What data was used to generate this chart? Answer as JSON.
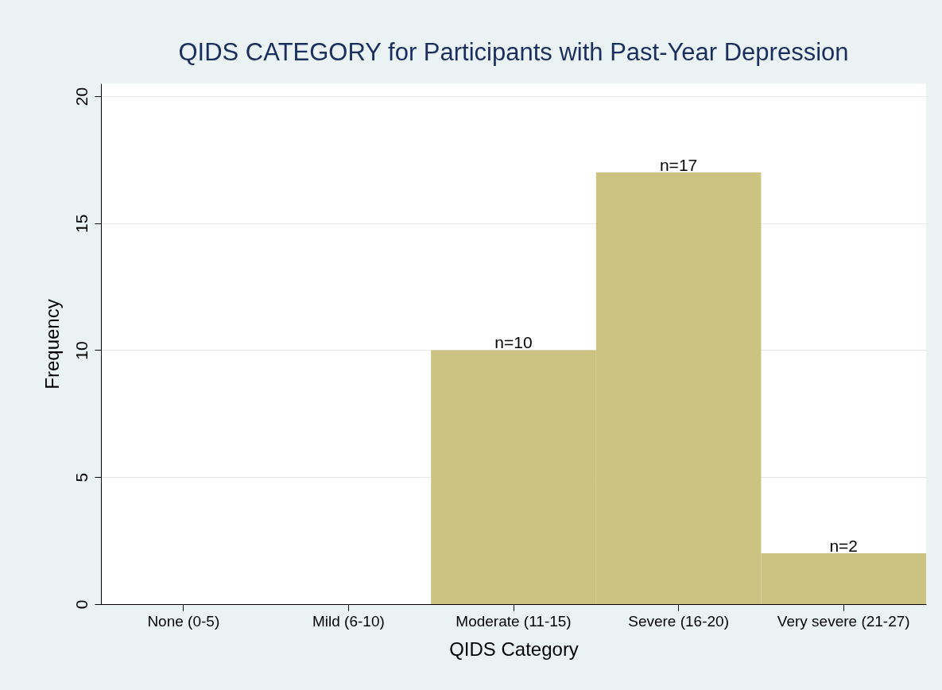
{
  "chart_data": {
    "type": "bar",
    "title": "QIDS CATEGORY for Participants with Past-Year Depression",
    "xlabel": "QIDS Category",
    "ylabel": "Frequency",
    "categories": [
      "None (0-5)",
      "Mild (6-10)",
      "Moderate (11-15)",
      "Severe (16-20)",
      "Very severe (21-27)"
    ],
    "values": [
      0,
      0,
      10,
      17,
      2
    ],
    "value_labels": [
      null,
      null,
      "n=10",
      "n=17",
      "n=2"
    ],
    "color": "#ccc382",
    "ylim": [
      0,
      20.5
    ],
    "yticks": [
      0,
      5,
      10,
      15,
      20
    ],
    "grid": "y"
  }
}
